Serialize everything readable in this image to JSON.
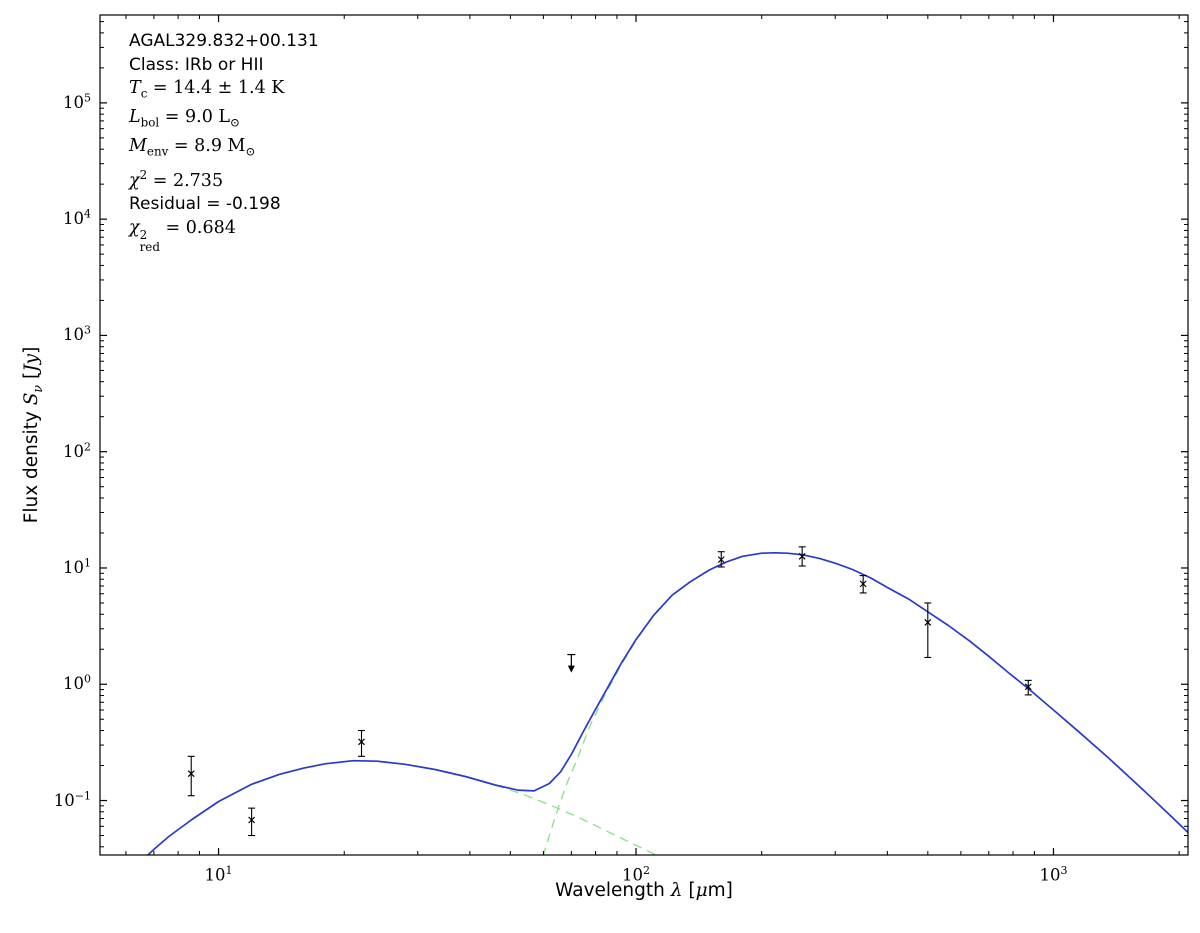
{
  "chart_data": {
    "type": "line",
    "description": "Spectral energy distribution (SED) fit: two-component greybody model over photometric data points, log-log axes",
    "annotation": {
      "source": "AGAL329.832+00.131",
      "class_line": "Class: IRb or HII",
      "tc": {
        "sym": "T",
        "sub": "c",
        "rest": " = 14.4 ± 1.4 K"
      },
      "lbol": {
        "sym": "L",
        "sub": "bol",
        "rest": " = 9.0 ",
        "unit": "L",
        "unit_sub": "⊙"
      },
      "menv": {
        "sym": "M",
        "sub": "env",
        "rest": " = 8.9 ",
        "unit": "M",
        "unit_sub": "⊙"
      },
      "chi2": {
        "sym": "χ",
        "sup": "2",
        "rest": " = 2.735"
      },
      "residual": "Residual = -0.198",
      "chi2red": {
        "sym": "χ",
        "sup": "2",
        "sub": "red",
        "rest": " = 0.684"
      }
    },
    "x_axis": {
      "label_parts": {
        "pre": "Wavelength ",
        "sym": "λ",
        "mid": " [",
        "mu": "μ",
        "post": "m]"
      },
      "scale": "log",
      "range": [
        5.2,
        2100
      ],
      "major_tick_exponents": [
        1,
        2,
        3
      ],
      "log_base": "10"
    },
    "y_axis": {
      "label_parts": {
        "pre": "Flux density ",
        "sym": "S",
        "sub": "ν",
        "mid": " [",
        "jy": "Jy",
        "post": "]"
      },
      "scale": "log",
      "range": [
        0.034,
        570000
      ],
      "major_tick_exponents": [
        -1,
        0,
        1,
        2,
        3,
        4,
        5
      ],
      "log_base": "10"
    },
    "series": [
      {
        "name": "warm-component",
        "style": "dashed",
        "color": "#8ae08a",
        "width": 1.3,
        "dash": "9,6",
        "x": [
          6.4,
          7.0,
          7.6,
          8.6,
          10,
          12,
          14,
          16,
          18,
          21,
          24,
          28,
          33,
          39,
          46,
          54,
          62,
          72,
          83,
          95,
          108,
          120
        ],
        "y": [
          0.028,
          0.038,
          0.049,
          0.068,
          0.098,
          0.138,
          0.168,
          0.19,
          0.207,
          0.22,
          0.218,
          0.205,
          0.185,
          0.161,
          0.136,
          0.112,
          0.092,
          0.073,
          0.057,
          0.045,
          0.036,
          0.03
        ]
      },
      {
        "name": "cold-component",
        "style": "dashed",
        "color": "#8ae08a",
        "width": 1.3,
        "dash": "9,6",
        "x": [
          56,
          60,
          64,
          68,
          72,
          78,
          85,
          92,
          100,
          110,
          122,
          135,
          150,
          165,
          180,
          200,
          215,
          230,
          250,
          275,
          300,
          330,
          365,
          400,
          450,
          500,
          560,
          630,
          700,
          780,
          870,
          1000,
          1150,
          1350,
          1600,
          1900,
          2150
        ],
        "y": [
          0.014,
          0.034,
          0.072,
          0.135,
          0.22,
          0.46,
          0.86,
          1.45,
          2.38,
          3.85,
          5.8,
          7.6,
          9.6,
          11.3,
          12.6,
          13.4,
          13.5,
          13.4,
          13.0,
          12.1,
          11.0,
          9.7,
          8.2,
          6.8,
          5.4,
          4.2,
          3.2,
          2.35,
          1.74,
          1.26,
          0.92,
          0.6,
          0.39,
          0.235,
          0.134,
          0.075,
          0.049
        ]
      },
      {
        "name": "model-total",
        "style": "solid",
        "color": "#2b38cf",
        "width": 1.7,
        "dash": "",
        "x": [
          6.4,
          7.0,
          7.6,
          8.6,
          10,
          12,
          14,
          16,
          18,
          21,
          24,
          28,
          33,
          39,
          46,
          52,
          57,
          62,
          66,
          70,
          75,
          80,
          86,
          92,
          100,
          110,
          122,
          135,
          150,
          165,
          180,
          200,
          215,
          230,
          250,
          275,
          300,
          330,
          365,
          400,
          450,
          500,
          560,
          630,
          700,
          780,
          870,
          1000,
          1150,
          1350,
          1600,
          1900,
          2150
        ],
        "y": [
          0.028,
          0.038,
          0.049,
          0.068,
          0.098,
          0.138,
          0.168,
          0.19,
          0.207,
          0.22,
          0.218,
          0.205,
          0.185,
          0.161,
          0.136,
          0.123,
          0.121,
          0.14,
          0.177,
          0.25,
          0.4,
          0.61,
          0.97,
          1.5,
          2.42,
          3.89,
          5.83,
          7.62,
          9.62,
          11.3,
          12.6,
          13.4,
          13.5,
          13.4,
          13.0,
          12.1,
          11.0,
          9.7,
          8.2,
          6.8,
          5.4,
          4.2,
          3.2,
          2.35,
          1.74,
          1.26,
          0.92,
          0.6,
          0.39,
          0.235,
          0.134,
          0.075,
          0.049
        ]
      }
    ],
    "points_style": {
      "color": "#000000",
      "marker": "x",
      "errorbar_caps": true
    },
    "points": [
      {
        "wavelength_um": 8.6,
        "flux_jy": 0.17,
        "err_hi": 0.07,
        "err_lo": 0.06
      },
      {
        "wavelength_um": 12,
        "flux_jy": 0.068,
        "err_hi": 0.018,
        "err_lo": 0.018
      },
      {
        "wavelength_um": 22,
        "flux_jy": 0.32,
        "err_hi": 0.08,
        "err_lo": 0.08
      },
      {
        "wavelength_um": 70,
        "flux_jy": 1.8,
        "upper_limit": true
      },
      {
        "wavelength_um": 160,
        "flux_jy": 11.8,
        "err_hi": 2.0,
        "err_lo": 1.6
      },
      {
        "wavelength_um": 250,
        "flux_jy": 12.6,
        "err_hi": 2.6,
        "err_lo": 2.2
      },
      {
        "wavelength_um": 350,
        "flux_jy": 7.3,
        "err_hi": 1.3,
        "err_lo": 1.2
      },
      {
        "wavelength_um": 500,
        "flux_jy": 3.4,
        "err_hi": 1.6,
        "err_lo": 1.7
      },
      {
        "wavelength_um": 870,
        "flux_jy": 0.95,
        "err_hi": 0.13,
        "err_lo": 0.14
      }
    ]
  }
}
